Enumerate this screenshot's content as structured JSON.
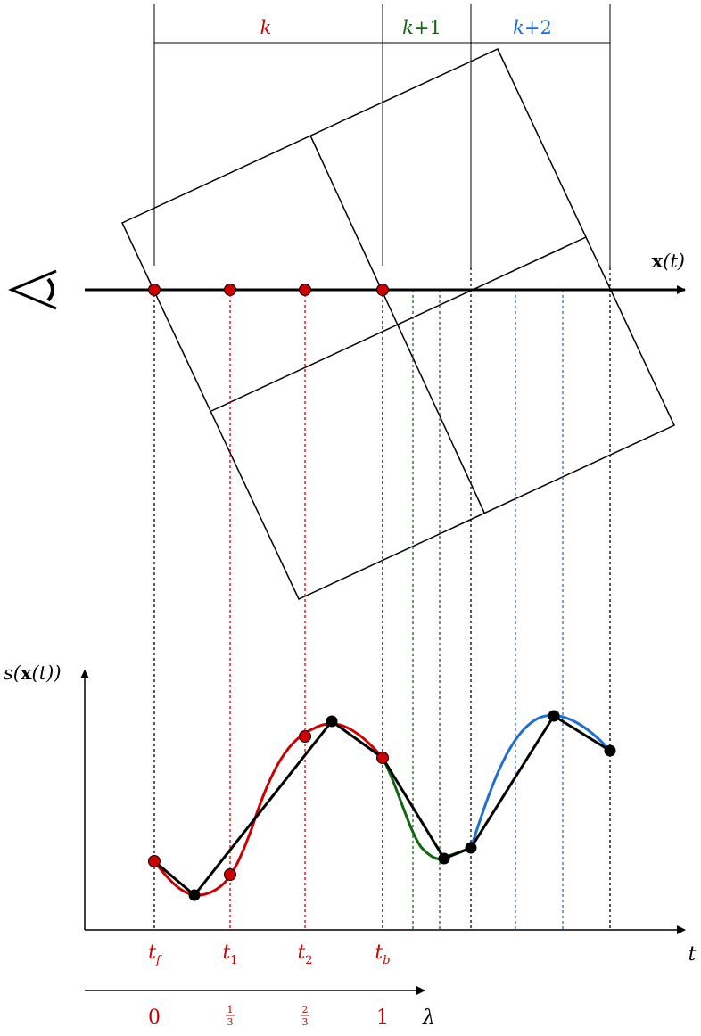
{
  "colors": {
    "k": "#cc0000",
    "k1": "#116611",
    "k2": "#1f6fd0",
    "ink": "#000000"
  },
  "eye": {
    "icon": "eye-icon"
  },
  "ray": {
    "label_bold": "x",
    "label_rest": "(t)"
  },
  "bricks": {
    "k_label": "k",
    "k1_label_var": "k",
    "k1_label_rest": "+1",
    "k2_label_var": "k",
    "k2_label_rest": "+2"
  },
  "plot": {
    "ylabel_pre": "s(",
    "ylabel_bold": "x",
    "ylabel_post": "(t))",
    "xlabel": "t"
  },
  "t_labels": [
    {
      "base": "t",
      "sub": "f"
    },
    {
      "base": "t",
      "sub": "1"
    },
    {
      "base": "t",
      "sub": "2"
    },
    {
      "base": "t",
      "sub": "b"
    }
  ],
  "lambda": {
    "label": "λ",
    "ticks": [
      {
        "text": "0"
      },
      {
        "num": "1",
        "den": "3"
      },
      {
        "num": "2",
        "den": "3"
      },
      {
        "text": "1"
      }
    ]
  }
}
